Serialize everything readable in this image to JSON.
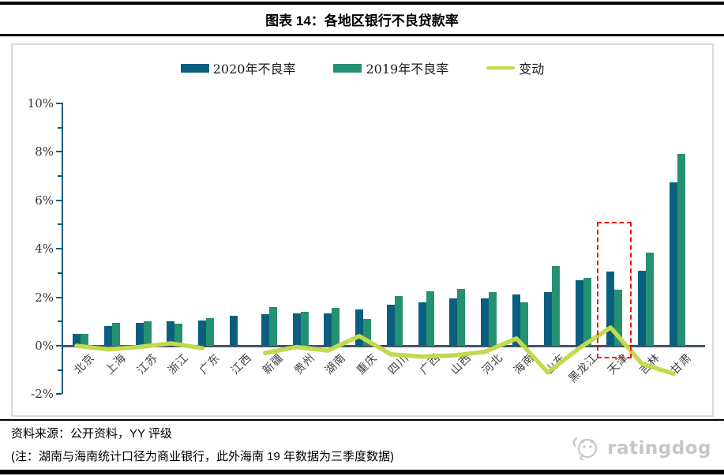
{
  "header": {
    "title": "图表 14：各地区银行不良贷款率"
  },
  "legend": [
    {
      "label": "2020年不良率",
      "type": "bar",
      "color": "#0a5f7e"
    },
    {
      "label": "2019年不良率",
      "type": "bar",
      "color": "#269072"
    },
    {
      "label": "变动",
      "type": "line",
      "color": "#c3d94e"
    }
  ],
  "chart_data": {
    "type": "bar",
    "title": "各地区银行不良贷款率",
    "categories": [
      "北京",
      "上海",
      "江苏",
      "浙江",
      "广东",
      "江西",
      "新疆",
      "贵州",
      "湖南",
      "重庆",
      "四川",
      "广西",
      "山西",
      "河北",
      "海南",
      "山东",
      "黑龙江",
      "天津",
      "吉林",
      "甘肃"
    ],
    "series": [
      {
        "name": "2020年不良率",
        "type": "bar",
        "color": "#0a5f7e",
        "values": [
          0.5,
          0.8,
          0.95,
          1.0,
          1.05,
          1.25,
          1.3,
          1.35,
          1.35,
          1.5,
          1.7,
          1.8,
          1.95,
          1.95,
          2.1,
          2.2,
          2.7,
          3.05,
          3.1,
          6.75
        ]
      },
      {
        "name": "2019年不良率",
        "type": "bar",
        "color": "#269072",
        "values": [
          0.5,
          0.95,
          1.0,
          0.9,
          1.15,
          null,
          1.6,
          1.4,
          1.55,
          1.1,
          2.05,
          2.25,
          2.35,
          2.2,
          1.8,
          3.3,
          2.8,
          2.3,
          3.85,
          7.9
        ]
      },
      {
        "name": "变动",
        "type": "line",
        "color": "#c3d94e",
        "values": [
          0.0,
          -0.15,
          -0.05,
          0.1,
          -0.1,
          null,
          -0.3,
          -0.05,
          -0.2,
          0.4,
          -0.35,
          -0.45,
          -0.4,
          -0.25,
          0.3,
          -1.1,
          -0.1,
          0.75,
          -0.75,
          -1.15
        ]
      }
    ],
    "ylabel": "",
    "xlabel": "",
    "ylim": [
      -2,
      10
    ],
    "ytick_values": [
      10,
      8,
      6,
      4,
      2,
      0,
      -2
    ],
    "ytick_labels": [
      "10%",
      "8%",
      "6%",
      "4%",
      "2%",
      "0%",
      "-2%"
    ],
    "grid": false,
    "legend_position": "top",
    "annotation": {
      "type": "dashed-box",
      "category": "天津",
      "color": "#fd0404"
    }
  },
  "footer": {
    "source": "资料来源：公开资料，YY 评级",
    "note": "(注：湖南与海南统计口径为商业银行，此外海南 19 年数据为三季度数据)",
    "logo_text": "ratingdog"
  }
}
